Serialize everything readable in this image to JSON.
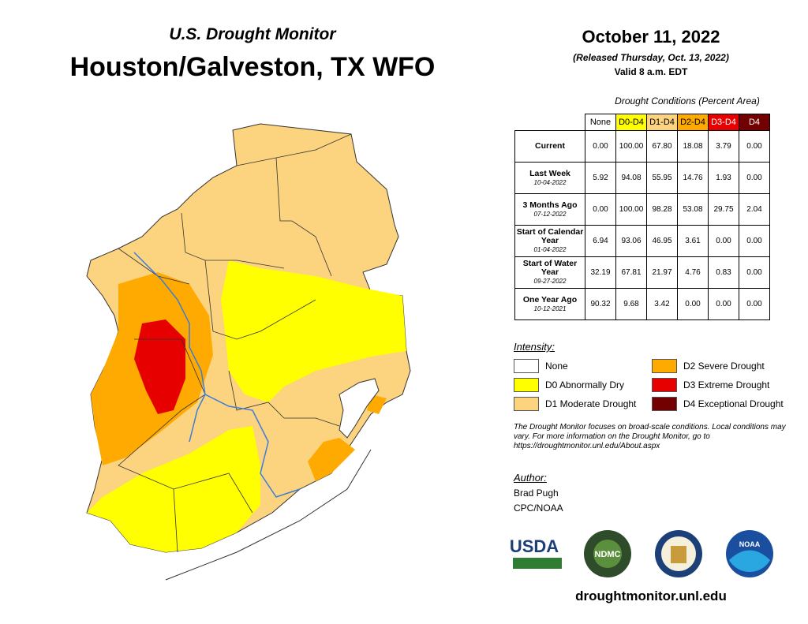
{
  "header": {
    "subtitle": "U.S. Drought Monitor",
    "title": "Houston/Galveston, TX WFO"
  },
  "date": {
    "date": "October 11, 2022",
    "released": "(Released Thursday, Oct. 13, 2022)",
    "valid": "Valid 8 a.m. EDT"
  },
  "table": {
    "caption": "Drought Conditions (Percent Area)",
    "columns": [
      {
        "label": "None",
        "color": "#ffffff",
        "text": "#000000"
      },
      {
        "label": "D0-D4",
        "color": "#ffff00",
        "text": "#000000"
      },
      {
        "label": "D1-D4",
        "color": "#fcd37f",
        "text": "#000000"
      },
      {
        "label": "D2-D4",
        "color": "#ffaa00",
        "text": "#000000"
      },
      {
        "label": "D3-D4",
        "color": "#e60000",
        "text": "#ffffff"
      },
      {
        "label": "D4",
        "color": "#730000",
        "text": "#ffffff"
      }
    ],
    "rows": [
      {
        "label": "Current",
        "values": [
          "0.00",
          "100.00",
          "67.80",
          "18.08",
          "3.79",
          "0.00"
        ]
      },
      {
        "label": "Last Week",
        "date": "10-04-2022",
        "values": [
          "5.92",
          "94.08",
          "55.95",
          "14.76",
          "1.93",
          "0.00"
        ]
      },
      {
        "label": "3 Months Ago",
        "date": "07-12-2022",
        "values": [
          "0.00",
          "100.00",
          "98.28",
          "53.08",
          "29.75",
          "2.04"
        ]
      },
      {
        "label": "Start of Calendar Year",
        "date": "01-04-2022",
        "values": [
          "6.94",
          "93.06",
          "46.95",
          "3.61",
          "0.00",
          "0.00"
        ]
      },
      {
        "label": "Start of Water Year",
        "date": "09-27-2022",
        "values": [
          "32.19",
          "67.81",
          "21.97",
          "4.76",
          "0.83",
          "0.00"
        ]
      },
      {
        "label": "One Year Ago",
        "date": "10-12-2021",
        "values": [
          "90.32",
          "9.68",
          "3.42",
          "0.00",
          "0.00",
          "0.00"
        ]
      }
    ]
  },
  "legend": {
    "title": "Intensity:",
    "items": [
      {
        "label": "None",
        "color": "#ffffff"
      },
      {
        "label": "D2 Severe Drought",
        "color": "#ffaa00"
      },
      {
        "label": "D0 Abnormally Dry",
        "color": "#ffff00"
      },
      {
        "label": "D3 Extreme Drought",
        "color": "#e60000"
      },
      {
        "label": "D1 Moderate Drought",
        "color": "#fcd37f"
      },
      {
        "label": "D4 Exceptional Drought",
        "color": "#730000"
      }
    ]
  },
  "note": "The Drought Monitor focuses on broad-scale conditions. Local conditions may vary. For more information on the Drought Monitor, go to https://droughtmonitor.unl.edu/About.aspx",
  "author": {
    "heading": "Author:",
    "name": "Brad Pugh",
    "org": "CPC/NOAA"
  },
  "logos": {
    "usda": "USDA",
    "ndmc": "NDMC",
    "noaa": "NOAA"
  },
  "footer": "droughtmonitor.unl.edu"
}
